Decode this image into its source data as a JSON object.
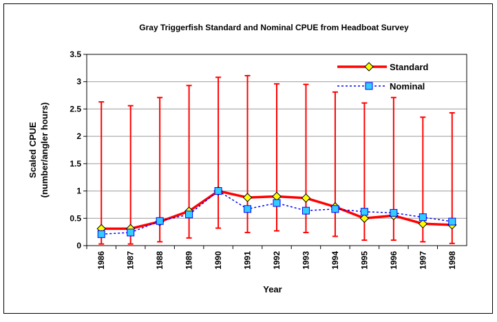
{
  "chart_data": {
    "type": "line",
    "title": "Gray Triggerfish Standard and Nominal CPUE from Headboat Survey",
    "x_label": "Year",
    "y_label": [
      "Scaled CPUE",
      "(number/angler hours)"
    ],
    "categories": [
      "1986",
      "1987",
      "1988",
      "1989",
      "1990",
      "1991",
      "1992",
      "1993",
      "1994",
      "1995",
      "1996",
      "1997",
      "1998"
    ],
    "series": [
      {
        "name": "Standard",
        "color": "#ff0000",
        "marker_color": "#ffff00",
        "marker": "diamond",
        "dash": false,
        "values": [
          0.31,
          0.31,
          0.44,
          0.63,
          1.0,
          0.88,
          0.9,
          0.87,
          0.71,
          0.5,
          0.55,
          0.4,
          0.38
        ],
        "ci_lower": [
          0.03,
          0.03,
          0.07,
          0.14,
          0.32,
          0.24,
          0.27,
          0.24,
          0.17,
          0.1,
          0.1,
          0.07,
          0.04
        ],
        "ci_upper": [
          2.63,
          2.56,
          2.71,
          2.93,
          3.08,
          3.11,
          2.96,
          2.95,
          2.81,
          2.61,
          2.71,
          2.35,
          2.43
        ]
      },
      {
        "name": "Nominal",
        "color": "#0000ff",
        "marker_color": "#33ccff",
        "marker": "square",
        "dash": true,
        "values": [
          0.21,
          0.24,
          0.45,
          0.57,
          1.0,
          0.67,
          0.78,
          0.64,
          0.67,
          0.62,
          0.6,
          0.52,
          0.44
        ]
      }
    ],
    "ylim": [
      0,
      3.5
    ],
    "yticks": [
      0,
      0.5,
      1,
      1.5,
      2,
      2.5,
      3,
      3.5
    ],
    "grid": true,
    "legend": "top-right"
  }
}
